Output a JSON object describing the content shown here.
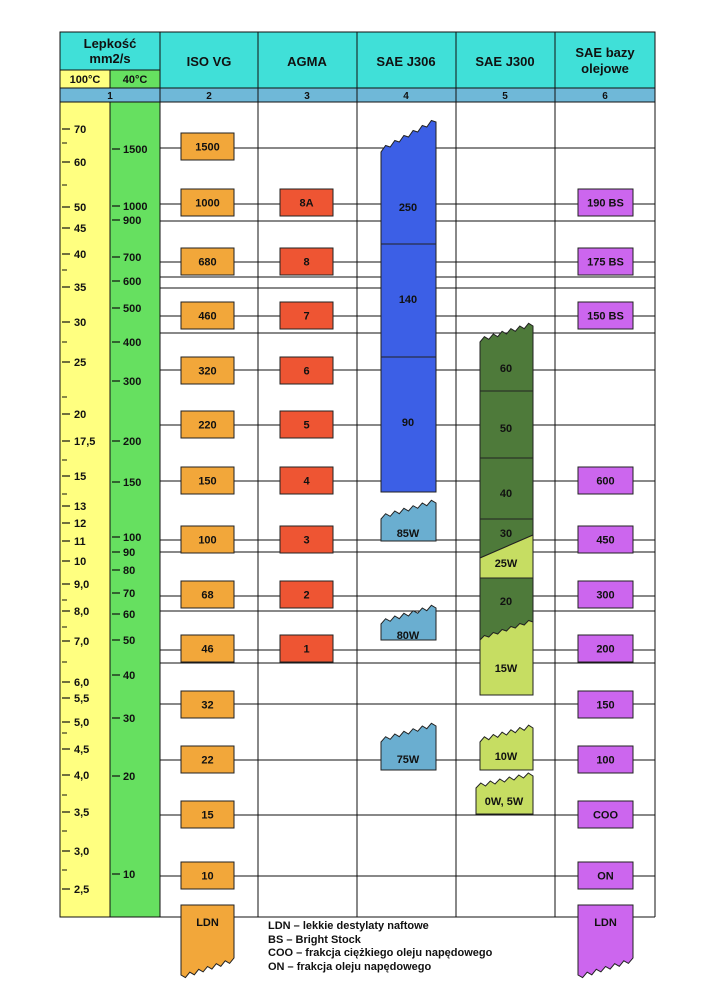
{
  "header": {
    "viscosity_title": "Lepkość",
    "viscosity_unit": "mm2/s",
    "temp_100": "100°C",
    "temp_40": "40°C",
    "columns": [
      "ISO VG",
      "AGMA",
      "SAE J306",
      "SAE J300",
      "SAE bazy olejowe"
    ],
    "column_numbers": [
      "1",
      "2",
      "3",
      "4",
      "5",
      "6"
    ]
  },
  "scales": {
    "visc_100": [
      "70",
      "60",
      "50",
      "45",
      "40",
      "35",
      "30",
      "25",
      "20",
      "17,5",
      "15",
      "13",
      "12",
      "11",
      "10",
      "9,0",
      "8,0",
      "7,0",
      "6,0",
      "5,5",
      "5,0",
      "4,5",
      "4,0",
      "3,5",
      "3,0",
      "2,5"
    ],
    "visc_40": [
      "1500",
      "1000",
      "900",
      "700",
      "600",
      "500",
      "400",
      "300",
      "200",
      "150",
      "100",
      "90",
      "80",
      "70",
      "60",
      "50",
      "40",
      "30",
      "20",
      "10"
    ]
  },
  "grades": {
    "iso_vg": [
      "1500",
      "1000",
      "680",
      "460",
      "320",
      "220",
      "150",
      "100",
      "68",
      "46",
      "32",
      "22",
      "15",
      "10",
      "LDN"
    ],
    "agma": [
      "8A",
      "8",
      "7",
      "6",
      "5",
      "4",
      "3",
      "2",
      "1"
    ],
    "sae_j306": [
      "250",
      "140",
      "90",
      "85W",
      "80W",
      "75W"
    ],
    "sae_j300": [
      "60",
      "50",
      "40",
      "30",
      "25W",
      "20",
      "15W",
      "10W",
      "0W, 5W"
    ],
    "sae_base": [
      "190 BS",
      "175 BS",
      "150 BS",
      "600",
      "450",
      "300",
      "200",
      "150",
      "100",
      "COO",
      "ON",
      "LDN"
    ]
  },
  "legend": [
    "LDN – lekkie destylaty naftowe",
    "BS – Bright Stock",
    "COO – frakcja ciężkiego oleju napędowego",
    "ON – frakcja oleju napędowego"
  ],
  "colors": {
    "header": "#40e0d8",
    "number_row": "#6fb8d8",
    "col_100": "#ffff80",
    "col_40": "#66e060",
    "iso": "#f2a73a",
    "agma": "#ee5533",
    "j306": "#3c5fe6",
    "j306_winter": "#6aaed0",
    "j300_dark": "#4e7a3a",
    "j300_light": "#c6dd62",
    "base": "#cc66ee"
  }
}
